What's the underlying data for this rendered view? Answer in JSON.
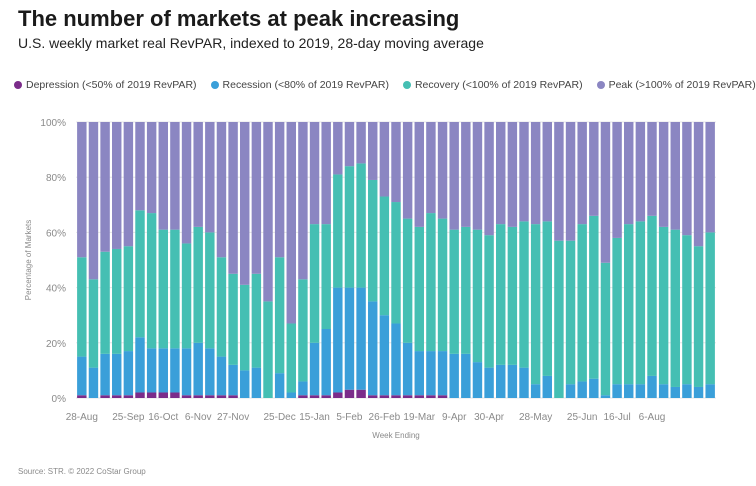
{
  "title": "The number of markets at peak increasing",
  "subtitle": "U.S. weekly market real RevPAR, indexed to 2019, 28-day moving average",
  "source": "Source: STR. © 2022 CoStar Group",
  "legend": [
    {
      "label": "Depression (<50% of 2019 RevPAR)",
      "color": "#7b2c8a"
    },
    {
      "label": "Recession (<80% of 2019 RevPAR)",
      "color": "#3a9fd9"
    },
    {
      "label": "Recovery (<100% of 2019 RevPAR)",
      "color": "#45bfb3"
    },
    {
      "label": "Peak (>100% of 2019 RevPAR)",
      "color": "#8b86c2"
    }
  ],
  "chart_data": {
    "type": "bar",
    "stacked": true,
    "xlabel": "Week Ending",
    "ylabel": "Percentage of Markets",
    "ylim": [
      0,
      100
    ],
    "yticks": [
      "0%",
      "20%",
      "40%",
      "60%",
      "80%",
      "100%"
    ],
    "xticks": [
      {
        "index": 0,
        "label": "28-Aug"
      },
      {
        "index": 4,
        "label": "25-Sep"
      },
      {
        "index": 7,
        "label": "16-Oct"
      },
      {
        "index": 10,
        "label": "6-Nov"
      },
      {
        "index": 13,
        "label": "27-Nov"
      },
      {
        "index": 17,
        "label": "25-Dec"
      },
      {
        "index": 20,
        "label": "15-Jan"
      },
      {
        "index": 23,
        "label": "5-Feb"
      },
      {
        "index": 26,
        "label": "26-Feb"
      },
      {
        "index": 29,
        "label": "19-Mar"
      },
      {
        "index": 32,
        "label": "9-Apr"
      },
      {
        "index": 35,
        "label": "30-Apr"
      },
      {
        "index": 39,
        "label": "28-May"
      },
      {
        "index": 43,
        "label": "25-Jun"
      },
      {
        "index": 46,
        "label": "16-Jul"
      },
      {
        "index": 49,
        "label": "6-Aug"
      }
    ],
    "series": [
      {
        "name": "Depression (<50% of 2019 RevPAR)",
        "color": "#7b2c8a",
        "values": [
          1,
          0,
          1,
          1,
          1,
          2,
          2,
          2,
          2,
          1,
          1,
          1,
          1,
          1,
          0,
          0,
          0,
          0,
          0,
          1,
          1,
          1,
          2,
          3,
          3,
          1,
          1,
          1,
          1,
          1,
          1,
          1,
          0,
          0,
          0,
          0,
          0,
          0,
          0,
          0,
          0,
          0,
          0,
          0,
          0,
          0,
          0,
          0,
          0,
          0,
          0,
          0,
          0,
          0,
          0
        ]
      },
      {
        "name": "Recession (<80% of 2019 RevPAR)",
        "color": "#3a9fd9",
        "values": [
          14,
          11,
          15,
          15,
          16,
          20,
          16,
          16,
          16,
          17,
          19,
          17,
          14,
          11,
          10,
          11,
          0,
          9,
          2,
          5,
          19,
          24,
          38,
          37,
          37,
          34,
          29,
          26,
          19,
          16,
          16,
          16,
          16,
          16,
          13,
          11,
          12,
          12,
          11,
          5,
          8,
          0,
          5,
          6,
          7,
          1,
          5,
          5,
          5,
          8,
          5,
          4,
          5,
          4,
          5
        ]
      },
      {
        "name": "Recovery (<100% of 2019 RevPAR)",
        "color": "#45bfb3",
        "values": [
          36,
          32,
          37,
          38,
          38,
          46,
          49,
          43,
          43,
          38,
          42,
          42,
          36,
          33,
          31,
          34,
          35,
          42,
          25,
          37,
          43,
          38,
          41,
          44,
          45,
          44,
          43,
          44,
          45,
          45,
          50,
          48,
          45,
          46,
          48,
          48,
          51,
          50,
          53,
          58,
          56,
          57,
          52,
          57,
          59,
          48,
          53,
          58,
          59,
          58,
          57,
          57,
          54,
          51,
          55
        ]
      },
      {
        "name": "Peak (>100% of 2019 RevPAR)",
        "color": "#8b86c2",
        "values": [
          49,
          57,
          47,
          46,
          45,
          32,
          33,
          39,
          39,
          44,
          38,
          40,
          49,
          55,
          59,
          55,
          65,
          49,
          73,
          57,
          37,
          37,
          19,
          16,
          15,
          21,
          27,
          29,
          35,
          38,
          33,
          35,
          39,
          38,
          39,
          41,
          37,
          38,
          36,
          37,
          36,
          43,
          43,
          37,
          34,
          51,
          42,
          37,
          36,
          34,
          38,
          39,
          41,
          45,
          40
        ]
      }
    ]
  }
}
